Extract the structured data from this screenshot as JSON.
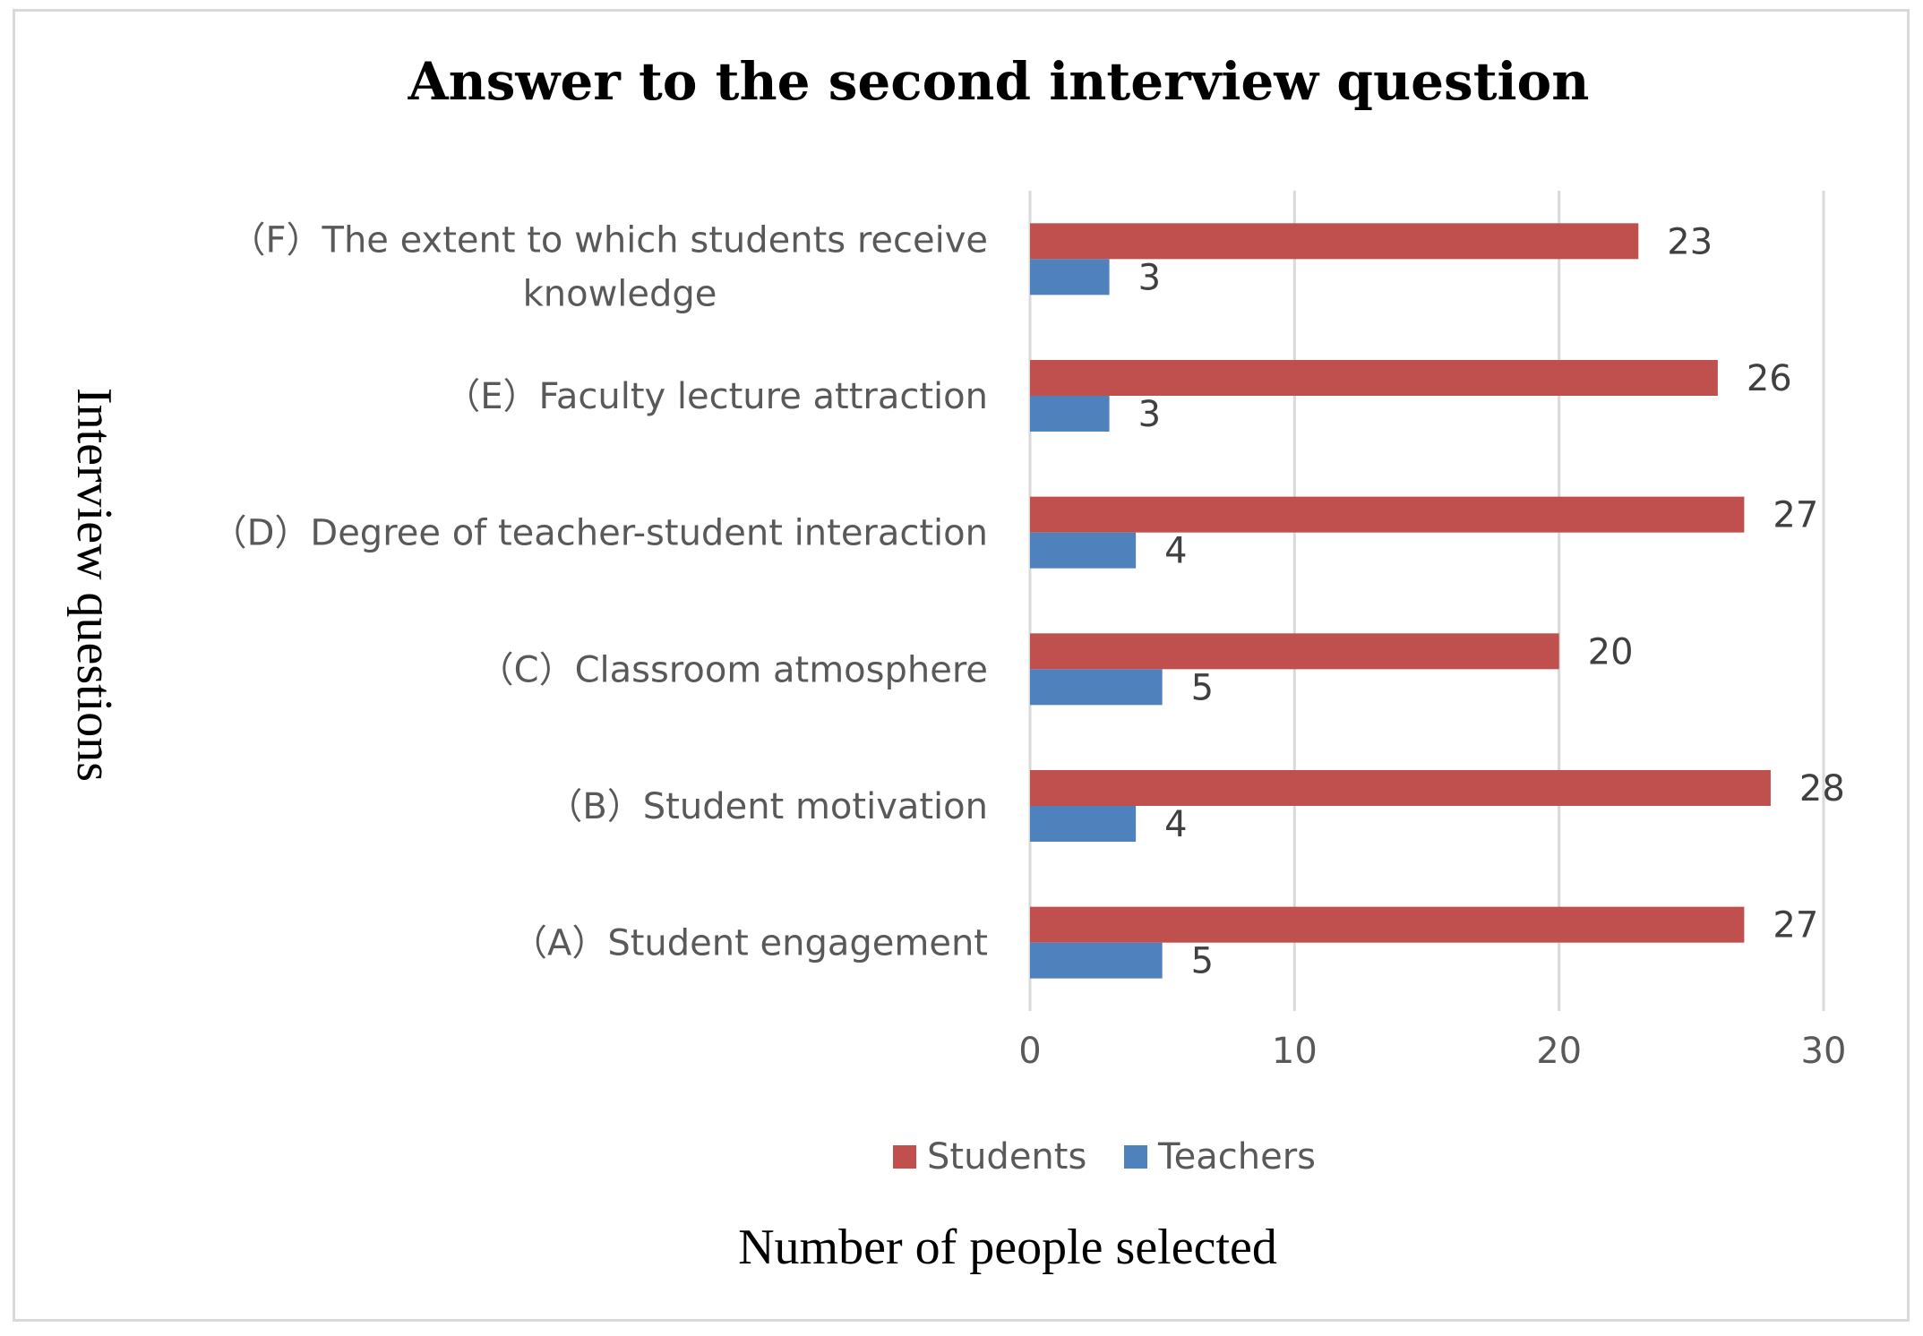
{
  "chart_data": {
    "type": "bar",
    "orientation": "horizontal",
    "title": "Answer to the second interview question",
    "xlabel": "Number of people selected",
    "ylabel": "Interview questions",
    "categories": [
      "（A）Student engagement",
      "（B）Student motivation",
      "（C）Classroom atmosphere",
      "（D）Degree of teacher-student interaction",
      "（E）Faculty lecture attraction",
      "（F）The extent to which students receive knowledge"
    ],
    "series": [
      {
        "name": "Students",
        "color": "#c0504d",
        "values": [
          27,
          28,
          20,
          27,
          26,
          23
        ]
      },
      {
        "name": "Teachers",
        "color": "#4f81bd",
        "values": [
          5,
          4,
          5,
          4,
          3,
          3
        ]
      }
    ],
    "xlim": [
      0,
      30
    ],
    "xticks": [
      "0",
      "10",
      "20",
      "30"
    ],
    "grid": true,
    "legend": "bottom"
  }
}
